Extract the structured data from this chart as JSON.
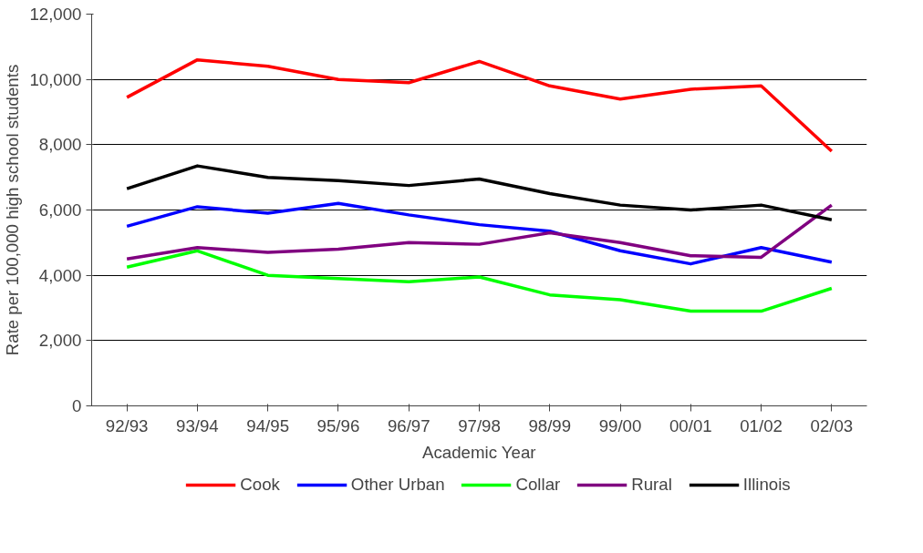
{
  "chart_data": {
    "type": "line",
    "xlabel": "Academic Year",
    "ylabel": "Rate per 100,000 high school students",
    "categories": [
      "92/93",
      "93/94",
      "94/95",
      "95/96",
      "96/97",
      "97/98",
      "98/99",
      "99/00",
      "00/01",
      "01/02",
      "02/03"
    ],
    "ylim": [
      0,
      12000
    ],
    "yticks": [
      {
        "value": 0,
        "label": "0"
      },
      {
        "value": 2000,
        "label": "2,000"
      },
      {
        "value": 4000,
        "label": "4,000"
      },
      {
        "value": 6000,
        "label": "6,000"
      },
      {
        "value": 8000,
        "label": "8,000"
      },
      {
        "value": 10000,
        "label": "10,000"
      },
      {
        "value": 12000,
        "label": "12,000"
      }
    ],
    "grid": "y",
    "legend": "bottom",
    "marker": "none",
    "line_style": "solid",
    "series": [
      {
        "name": "Cook",
        "color": "#ff0000",
        "values": [
          9450,
          10600,
          10400,
          10000,
          9900,
          10550,
          9800,
          9400,
          9700,
          9800,
          7800
        ]
      },
      {
        "name": "Other Urban",
        "color": "#0000ff",
        "values": [
          5500,
          6100,
          5900,
          6200,
          5850,
          5550,
          5350,
          4750,
          4350,
          4850,
          4400
        ]
      },
      {
        "name": "Collar",
        "color": "#00ff00",
        "values": [
          4250,
          4750,
          4000,
          3900,
          3800,
          3950,
          3400,
          3250,
          2900,
          2900,
          3600
        ]
      },
      {
        "name": "Rural",
        "color": "#800080",
        "values": [
          4500,
          4850,
          4700,
          4800,
          5000,
          4950,
          5300,
          5000,
          4600,
          4550,
          6150
        ]
      },
      {
        "name": "Illinois",
        "color": "#000000",
        "values": [
          6650,
          7350,
          7000,
          6900,
          6750,
          6950,
          6500,
          6150,
          6000,
          6150,
          5700
        ]
      }
    ]
  }
}
